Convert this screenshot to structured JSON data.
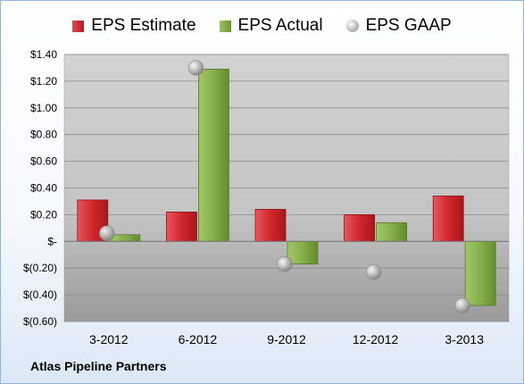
{
  "footer_label": "Atlas Pipeline Partners",
  "chart_data": {
    "type": "bar",
    "categories": [
      "3-2012",
      "6-2012",
      "9-2012",
      "12-2012",
      "3-2013"
    ],
    "series": [
      {
        "name": "EPS Estimate",
        "kind": "bar",
        "color": "#c8242a",
        "values": [
          0.31,
          0.22,
          0.24,
          0.2,
          0.34
        ]
      },
      {
        "name": "EPS Actual",
        "kind": "bar",
        "color": "#7fa843",
        "values": [
          0.05,
          1.29,
          -0.17,
          0.14,
          -0.48
        ]
      },
      {
        "name": "EPS GAAP",
        "kind": "scatter",
        "color": "#a6a6a6",
        "values": [
          0.06,
          1.3,
          -0.17,
          -0.23,
          -0.48
        ]
      }
    ],
    "ylim": [
      -0.6,
      1.4
    ],
    "y_ticks": [
      {
        "value": 1.4,
        "label": "$1.40"
      },
      {
        "value": 1.2,
        "label": "$1.20"
      },
      {
        "value": 1.0,
        "label": "$1.00"
      },
      {
        "value": 0.8,
        "label": "$0.80"
      },
      {
        "value": 0.6,
        "label": "$0.60"
      },
      {
        "value": 0.4,
        "label": "$0.40"
      },
      {
        "value": 0.2,
        "label": "$0.20"
      },
      {
        "value": 0.0,
        "label": "$-"
      },
      {
        "value": -0.2,
        "label": "$(0.20)"
      },
      {
        "value": -0.4,
        "label": "$(0.40)"
      },
      {
        "value": -0.6,
        "label": "$(0.60)"
      }
    ],
    "grid": true,
    "legend_position": "top"
  }
}
